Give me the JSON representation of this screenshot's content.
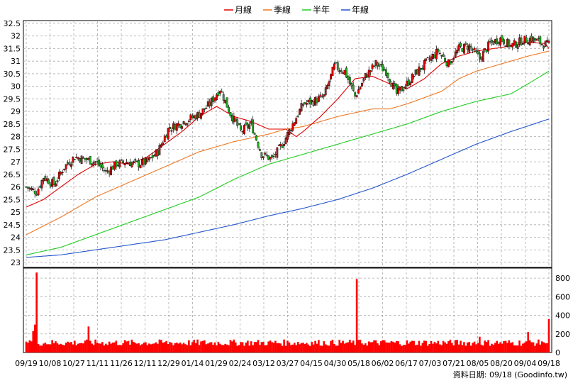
{
  "chart_data": {
    "type": "candlestick",
    "legend": [
      {
        "name": "月線",
        "color": "#dd0000"
      },
      {
        "name": "季線",
        "color": "#ee7722"
      },
      {
        "name": "半年",
        "color": "#22cc22"
      },
      {
        "name": "年線",
        "color": "#2255cc"
      }
    ],
    "price_axis": {
      "ylim": [
        23,
        32.5
      ],
      "ticks": [
        "23",
        "23.5",
        "24",
        "24.5",
        "25",
        "25.5",
        "26",
        "26.5",
        "27",
        "27.5",
        "28",
        "28.5",
        "29",
        "29.5",
        "30",
        "30.5",
        "31",
        "31.5",
        "32",
        "32.5"
      ]
    },
    "volume_axis": {
      "ylim": [
        0,
        900
      ],
      "ticks": [
        "0",
        "200",
        "400",
        "600",
        "800"
      ]
    },
    "x_ticks": [
      "09/19",
      "10/08",
      "10/27",
      "11/11",
      "11/26",
      "12/11",
      "12/29",
      "01/14",
      "01/29",
      "02/24",
      "03/12",
      "03/27",
      "04/15",
      "04/30",
      "05/18",
      "06/02",
      "06/17",
      "07/03",
      "07/21",
      "08/05",
      "08/20",
      "09/04",
      "09/18"
    ],
    "colors": {
      "up": "#dd0000",
      "down": "#22aa22",
      "volume": "#ff0000",
      "grid": "#aaaaaa"
    },
    "close_anchors": [
      [
        0,
        26.0
      ],
      [
        6,
        25.8
      ],
      [
        10,
        26.4
      ],
      [
        16,
        26.1
      ],
      [
        22,
        26.8
      ],
      [
        28,
        27.2
      ],
      [
        34,
        27.1
      ],
      [
        40,
        27.0
      ],
      [
        46,
        26.6
      ],
      [
        52,
        26.9
      ],
      [
        58,
        27.0
      ],
      [
        64,
        26.9
      ],
      [
        70,
        27.0
      ],
      [
        76,
        27.4
      ],
      [
        82,
        28.3
      ],
      [
        88,
        28.5
      ],
      [
        94,
        28.7
      ],
      [
        100,
        28.9
      ],
      [
        106,
        29.3
      ],
      [
        112,
        29.9
      ],
      [
        118,
        28.9
      ],
      [
        124,
        28.2
      ],
      [
        130,
        28.5
      ],
      [
        136,
        27.3
      ],
      [
        142,
        27.1
      ],
      [
        148,
        27.7
      ],
      [
        154,
        28.5
      ],
      [
        160,
        29.3
      ],
      [
        166,
        29.4
      ],
      [
        172,
        29.6
      ],
      [
        178,
        30.8
      ],
      [
        184,
        30.6
      ],
      [
        190,
        29.6
      ],
      [
        196,
        30.4
      ],
      [
        202,
        30.9
      ],
      [
        208,
        30.6
      ],
      [
        214,
        29.7
      ],
      [
        220,
        30.1
      ],
      [
        226,
        30.6
      ],
      [
        232,
        31.0
      ],
      [
        238,
        31.4
      ],
      [
        244,
        30.9
      ],
      [
        250,
        31.5
      ],
      [
        256,
        31.6
      ],
      [
        262,
        31.1
      ],
      [
        268,
        31.7
      ],
      [
        274,
        31.9
      ],
      [
        280,
        31.6
      ],
      [
        286,
        31.8
      ],
      [
        292,
        31.9
      ],
      [
        298,
        31.7
      ],
      [
        302,
        31.65
      ]
    ],
    "month_line": [
      [
        0,
        25.2
      ],
      [
        10,
        25.5
      ],
      [
        20,
        26.0
      ],
      [
        30,
        26.5
      ],
      [
        40,
        26.9
      ],
      [
        50,
        27.0
      ],
      [
        60,
        26.9
      ],
      [
        70,
        27.2
      ],
      [
        80,
        27.7
      ],
      [
        90,
        28.2
      ],
      [
        100,
        28.8
      ],
      [
        110,
        29.2
      ],
      [
        120,
        28.8
      ],
      [
        130,
        28.6
      ],
      [
        140,
        28.3
      ],
      [
        150,
        28.3
      ],
      [
        156,
        28.0
      ],
      [
        160,
        28.2
      ],
      [
        170,
        28.8
      ],
      [
        180,
        29.5
      ],
      [
        190,
        30.3
      ],
      [
        200,
        30.4
      ],
      [
        210,
        30.1
      ],
      [
        220,
        29.9
      ],
      [
        230,
        30.3
      ],
      [
        240,
        30.9
      ],
      [
        250,
        31.2
      ],
      [
        260,
        31.4
      ],
      [
        270,
        31.5
      ],
      [
        280,
        31.6
      ],
      [
        290,
        31.75
      ],
      [
        300,
        31.7
      ],
      [
        302,
        31.5
      ]
    ],
    "quarter_line": [
      [
        0,
        24.1
      ],
      [
        20,
        24.8
      ],
      [
        40,
        25.6
      ],
      [
        60,
        26.2
      ],
      [
        80,
        26.8
      ],
      [
        100,
        27.4
      ],
      [
        120,
        27.8
      ],
      [
        140,
        28.1
      ],
      [
        150,
        28.3
      ],
      [
        160,
        28.4
      ],
      [
        180,
        28.8
      ],
      [
        200,
        29.1
      ],
      [
        210,
        29.1
      ],
      [
        220,
        29.3
      ],
      [
        240,
        29.8
      ],
      [
        250,
        30.3
      ],
      [
        260,
        30.6
      ],
      [
        270,
        30.8
      ],
      [
        280,
        31.0
      ],
      [
        290,
        31.2
      ],
      [
        302,
        31.4
      ]
    ],
    "half_line": [
      [
        0,
        23.3
      ],
      [
        20,
        23.6
      ],
      [
        40,
        24.1
      ],
      [
        60,
        24.6
      ],
      [
        80,
        25.1
      ],
      [
        100,
        25.6
      ],
      [
        120,
        26.3
      ],
      [
        140,
        26.9
      ],
      [
        160,
        27.3
      ],
      [
        180,
        27.7
      ],
      [
        200,
        28.1
      ],
      [
        220,
        28.5
      ],
      [
        240,
        29.0
      ],
      [
        260,
        29.4
      ],
      [
        280,
        29.7
      ],
      [
        290,
        30.1
      ],
      [
        302,
        30.6
      ]
    ],
    "year_line": [
      [
        0,
        23.2
      ],
      [
        20,
        23.3
      ],
      [
        40,
        23.5
      ],
      [
        60,
        23.7
      ],
      [
        80,
        23.9
      ],
      [
        100,
        24.2
      ],
      [
        120,
        24.5
      ],
      [
        140,
        24.85
      ],
      [
        160,
        25.15
      ],
      [
        180,
        25.5
      ],
      [
        200,
        25.95
      ],
      [
        220,
        26.5
      ],
      [
        240,
        27.1
      ],
      [
        260,
        27.7
      ],
      [
        280,
        28.2
      ],
      [
        302,
        28.7
      ]
    ],
    "volume_spikes": [
      [
        3,
        120
      ],
      [
        4,
        230
      ],
      [
        5,
        300
      ],
      [
        6,
        860
      ],
      [
        36,
        280
      ],
      [
        191,
        790
      ],
      [
        262,
        170
      ],
      [
        290,
        220
      ],
      [
        298,
        120
      ],
      [
        299,
        110
      ],
      [
        302,
        360
      ]
    ],
    "footer_date": "09/18",
    "footer_text": "資料日期: 09/18 (Goodinfo.tw)"
  }
}
